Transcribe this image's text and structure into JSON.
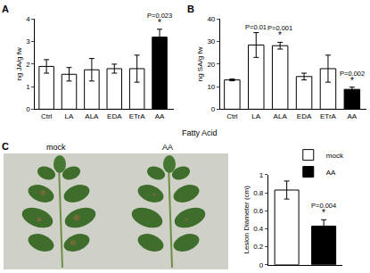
{
  "chart_data": [
    {
      "type": "bar",
      "panel": "A",
      "ylabel": "ng JA/g fw",
      "categories": [
        "Ctrl",
        "LA",
        "ALA",
        "EDA",
        "ETrA",
        "AA"
      ],
      "values": [
        1.9,
        1.55,
        1.75,
        1.8,
        1.8,
        3.2
      ],
      "errors": [
        0.3,
        0.3,
        0.5,
        0.2,
        0.6,
        0.35
      ],
      "colors": [
        "#ffffff",
        "#ffffff",
        "#ffffff",
        "#ffffff",
        "#ffffff",
        "#000000"
      ],
      "ylim": [
        0,
        4
      ],
      "yticks": [
        0,
        1,
        2,
        3,
        4
      ],
      "annotations": [
        {
          "category": "AA",
          "texts": [
            "*",
            "P=0.023"
          ]
        }
      ]
    },
    {
      "type": "bar",
      "panel": "B",
      "ylabel": "ng SA/g fw",
      "categories": [
        "Ctrl",
        "LA",
        "ALA",
        "EDA",
        "ETrA",
        "AA"
      ],
      "values": [
        13,
        28.5,
        28.2,
        14.5,
        18,
        8.8
      ],
      "errors": [
        0.4,
        5.5,
        1.5,
        1.5,
        6,
        1
      ],
      "colors": [
        "#ffffff",
        "#ffffff",
        "#ffffff",
        "#ffffff",
        "#ffffff",
        "#000000"
      ],
      "ylim": [
        0,
        40
      ],
      "yticks": [
        0,
        10,
        20,
        30,
        40
      ],
      "annotations": [
        {
          "category": "LA",
          "texts": [
            "P=0.01"
          ]
        },
        {
          "category": "ALA",
          "texts": [
            "*",
            "P=0.001"
          ]
        },
        {
          "category": "AA",
          "texts": [
            "*",
            "P=0.002"
          ]
        }
      ]
    },
    {
      "type": "bar",
      "panel": "C",
      "ylabel": "Lesion Diameter (cm)",
      "categories": [
        null,
        null
      ],
      "series": [
        {
          "name": "mock",
          "color": "#ffffff",
          "values": [
            0.83,
            null
          ],
          "errors": [
            0.1,
            null
          ]
        },
        {
          "name": "AA",
          "color": "#000000",
          "values": [
            null,
            0.43
          ],
          "errors": [
            null,
            0.07
          ]
        }
      ],
      "ylim": [
        0,
        1
      ],
      "yticks": [
        0,
        0.2,
        0.4,
        0.6,
        0.8,
        1
      ],
      "tick_labels": "y",
      "legend": "top right",
      "annotations": [
        {
          "at": 1,
          "texts": [
            "*",
            "P=0.004"
          ]
        }
      ]
    }
  ],
  "xlabel": "Fatty Acid",
  "photo": {
    "labels": [
      "mock",
      "AA"
    ]
  }
}
